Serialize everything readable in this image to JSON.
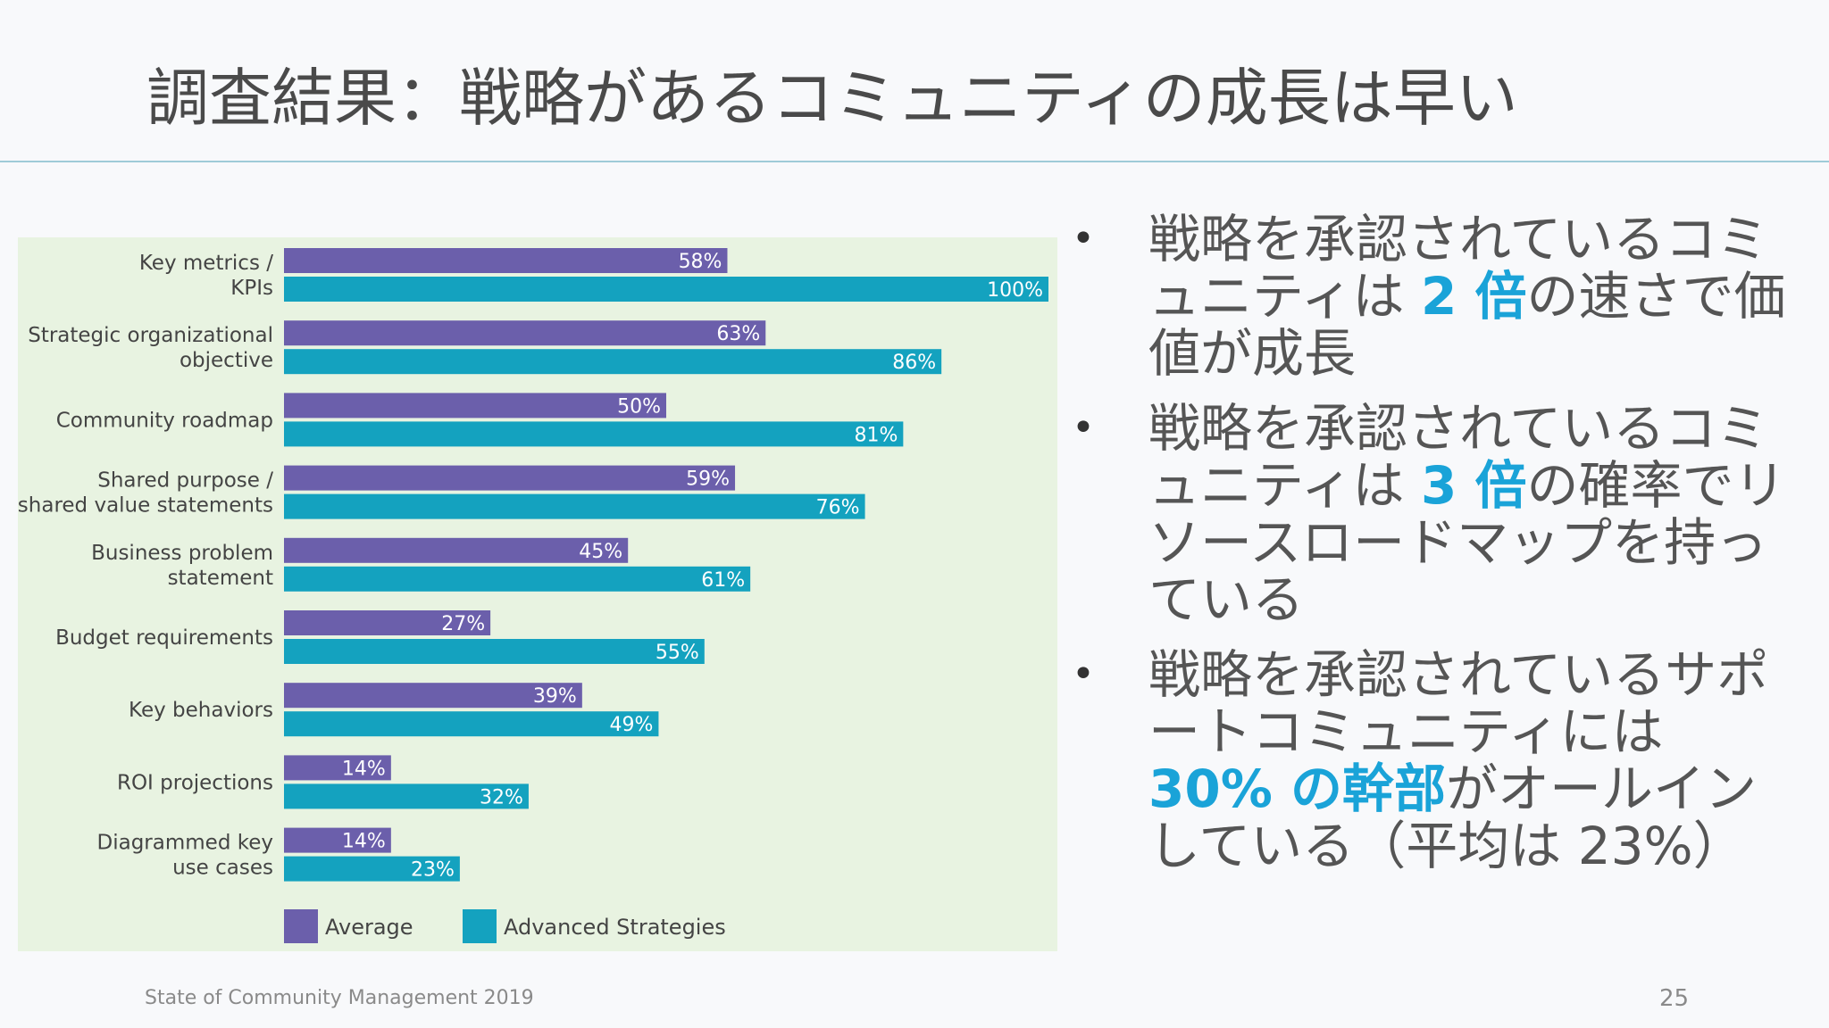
{
  "slide": {
    "title": "調査結果：戦略があるコミュニティの成長は早い",
    "footer": "State of Community Management 2019",
    "page_number": "25"
  },
  "bullets": [
    {
      "before": "戦略を承認されているコミュニティは ",
      "highlight": "2 倍",
      "after": "の速さで価値が成長"
    },
    {
      "before": "戦略を承認されているコミュニティは ",
      "highlight": "3 倍",
      "after": "の確率でリソースロードマップを持っている"
    },
    {
      "before": "戦略を承認されているサポートコミュニティには ",
      "highlight": "30% の幹部",
      "after": "がオールインしている（平均は 23%）"
    }
  ],
  "colors": {
    "average": "#6b5fab",
    "advanced": "#14a2bf",
    "highlight": "#1aa3d8"
  },
  "chart_data": {
    "type": "bar",
    "orientation": "horizontal",
    "xlim": [
      0,
      100
    ],
    "value_suffix": "%",
    "categories": [
      [
        "Key metrics /",
        "KPIs"
      ],
      [
        "Strategic organizational",
        "objective"
      ],
      [
        "Community roadmap"
      ],
      [
        "Shared purpose /",
        "shared value statements"
      ],
      [
        "Business problem",
        "statement"
      ],
      [
        "Budget requirements"
      ],
      [
        "Key behaviors"
      ],
      [
        "ROI projections"
      ],
      [
        "Diagrammed key",
        "use cases"
      ]
    ],
    "series": [
      {
        "name": "Average",
        "values": [
          58,
          63,
          50,
          59,
          45,
          27,
          39,
          14,
          14
        ]
      },
      {
        "name": "Advanced Strategies",
        "values": [
          100,
          86,
          81,
          76,
          61,
          55,
          49,
          32,
          23
        ]
      }
    ],
    "legend": "bottom-left"
  }
}
